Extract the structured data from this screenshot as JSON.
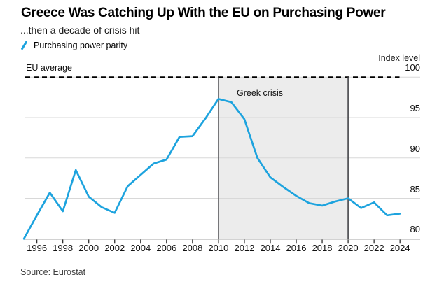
{
  "header": {
    "title": "Greece Was Catching Up With the EU on Purchasing Power",
    "subtitle": "...then a decade of crisis hit",
    "legend": {
      "label": "Purchasing power parity",
      "color": "#1DA3DE"
    }
  },
  "footer": {
    "source": "Source: Eurostat"
  },
  "chart_data": {
    "type": "line",
    "title": "Greece Was Catching Up With the EU on Purchasing Power",
    "subtitle": "...then a decade of crisis hit",
    "ylabel_right": "Index level",
    "xlim": [
      1995,
      2024
    ],
    "ylim": [
      80,
      100
    ],
    "grid": "horizontal",
    "legend_position": "top-left",
    "x": [
      1995,
      1996,
      1997,
      1998,
      1999,
      2000,
      2001,
      2002,
      2003,
      2004,
      2005,
      2006,
      2007,
      2008,
      2009,
      2010,
      2011,
      2012,
      2013,
      2014,
      2015,
      2016,
      2017,
      2018,
      2019,
      2020,
      2021,
      2022,
      2023,
      2024
    ],
    "series": [
      {
        "name": "Purchasing power parity",
        "color": "#1DA3DE",
        "values": [
          80.0,
          82.9,
          85.7,
          83.4,
          88.5,
          85.2,
          83.9,
          83.2,
          86.5,
          87.9,
          89.3,
          89.8,
          92.6,
          92.7,
          94.9,
          97.3,
          96.9,
          94.8,
          90.0,
          87.6,
          86.4,
          85.3,
          84.4,
          84.1,
          84.6,
          85.0,
          83.8,
          84.5,
          82.9,
          83.1
        ]
      }
    ],
    "x_tick_years": [
      1996,
      1998,
      2000,
      2002,
      2004,
      2006,
      2008,
      2010,
      2012,
      2014,
      2016,
      2018,
      2020,
      2022,
      2024
    ],
    "x_tick_labels": [
      "1996",
      "1998",
      "2000",
      "2002",
      "2004",
      "2006",
      "2008",
      "2010",
      "2012",
      "2014",
      "2016",
      "2018",
      "2020",
      "2022",
      "2024"
    ],
    "y_ticks": [
      100,
      95,
      90,
      85,
      80
    ],
    "y_tick_labels": [
      "100",
      "95",
      "90",
      "85",
      "80"
    ],
    "reference_line": {
      "label": "EU average",
      "value": 100,
      "style": "dashed-black"
    },
    "shaded_region": {
      "label": "Greek crisis",
      "from": 2010,
      "to": 2020,
      "fill": "#ECECEC",
      "border": "#4E4F53"
    },
    "colors": {
      "line": "#1DA3DE",
      "gridline": "#D8D8D8",
      "axis": "#A6A6A6",
      "tick": "#2F2F2F"
    }
  }
}
